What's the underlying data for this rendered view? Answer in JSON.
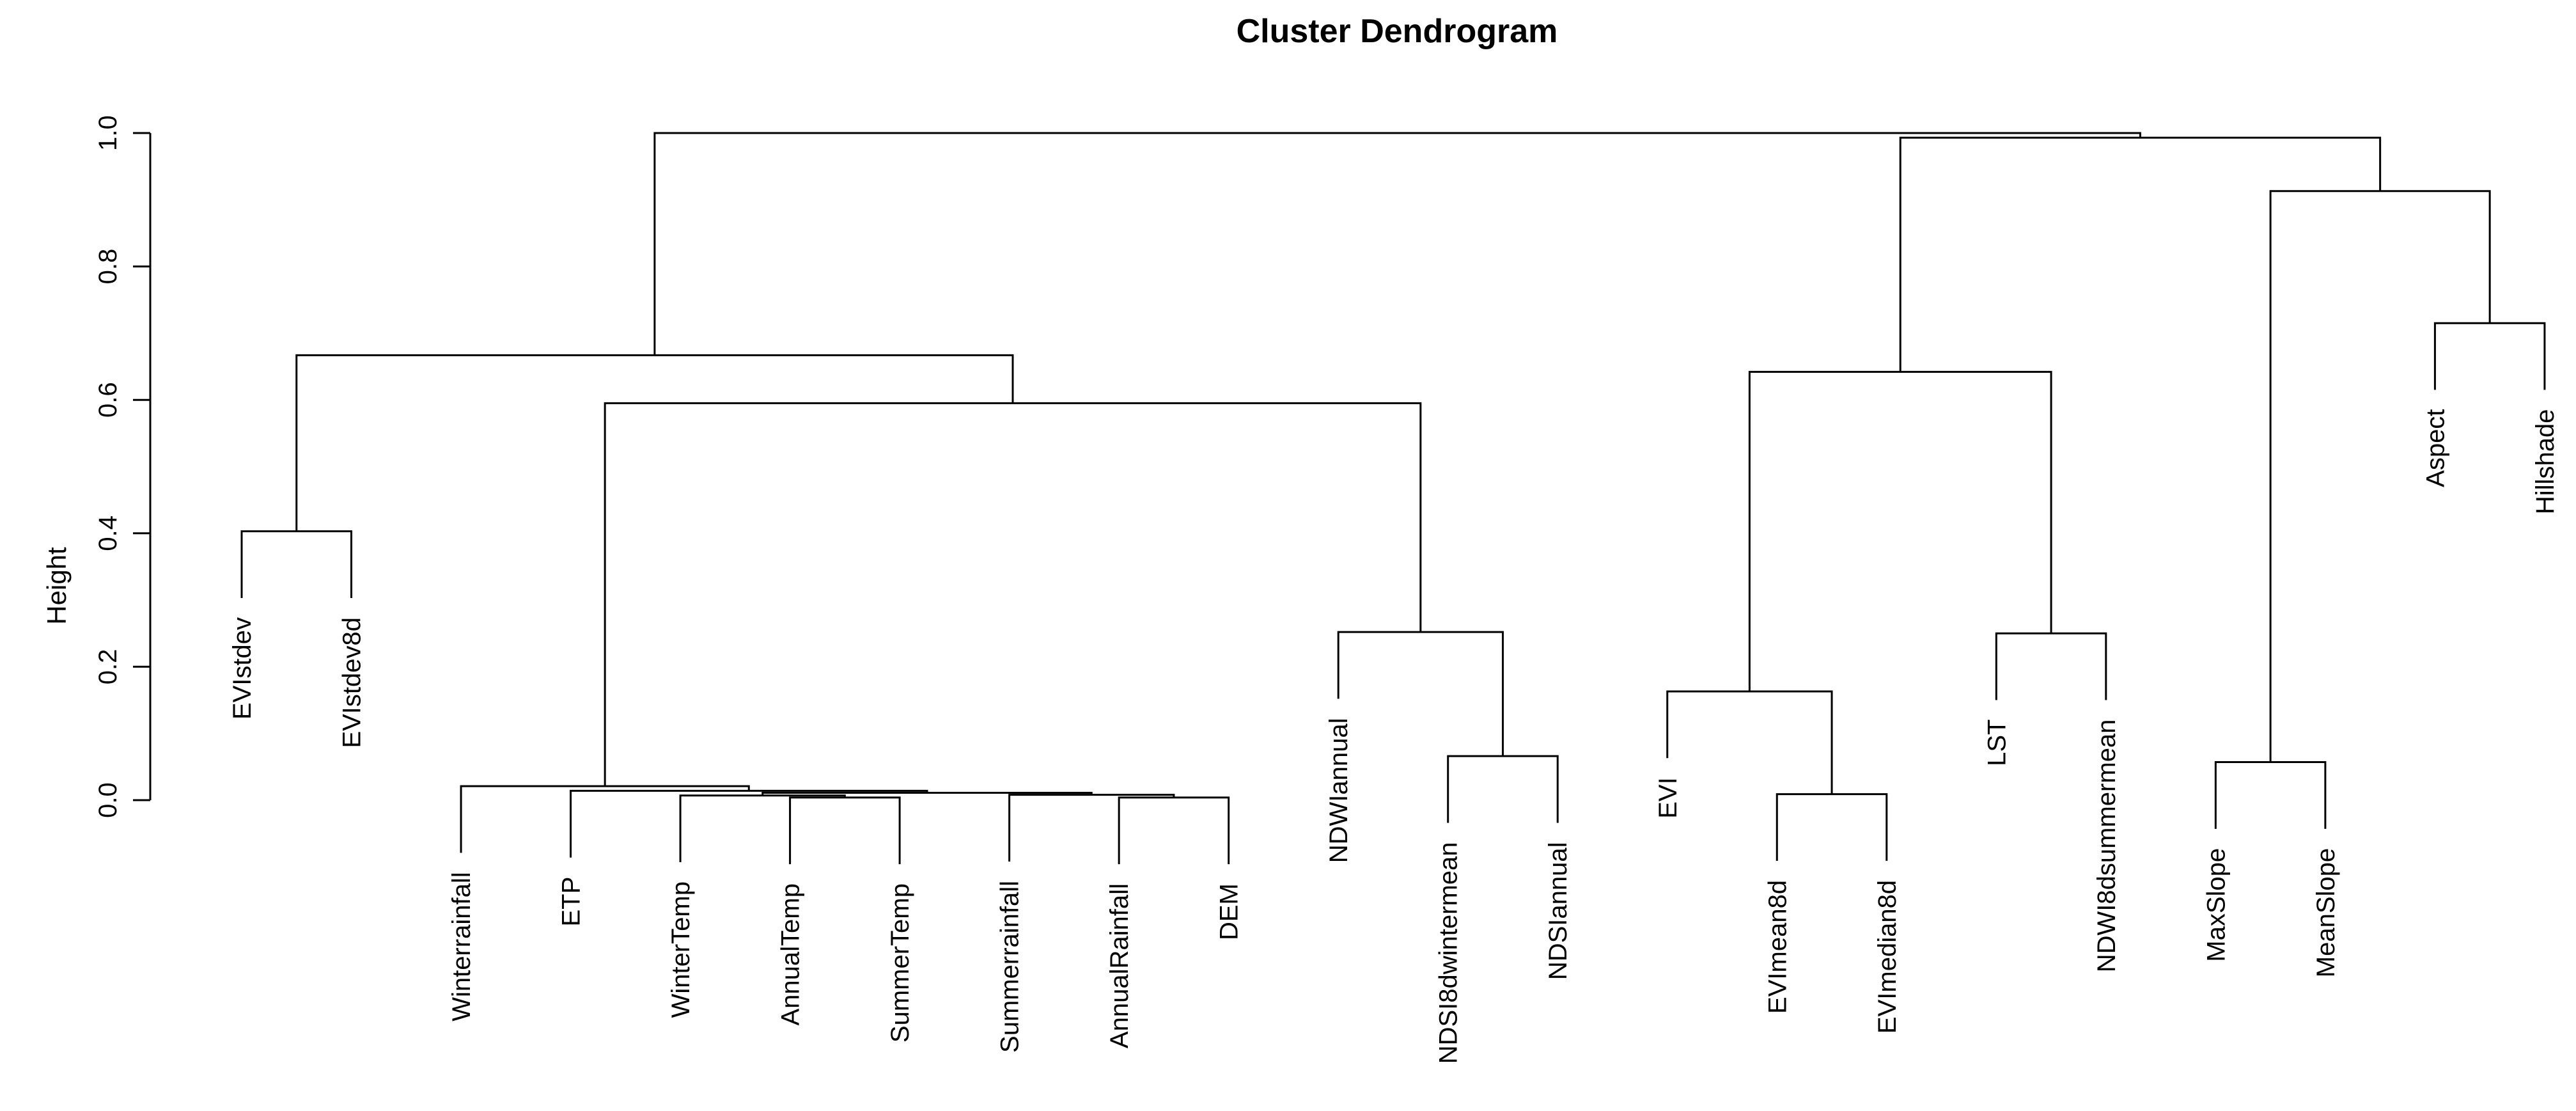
{
  "page": {
    "background": "#ffffff"
  },
  "chart_data": {
    "type": "dendrogram",
    "title": "Cluster Dendrogram",
    "ylabel": "Height",
    "ylim": [
      0,
      1
    ],
    "yticks": [
      "0.0",
      "0.2",
      "0.4",
      "0.6",
      "0.8",
      "1.0"
    ],
    "ytick_values": [
      0.0,
      0.2,
      0.4,
      0.6,
      0.8,
      1.0
    ],
    "hang": 0.1,
    "line_color": "#000000",
    "text_color": "#000000",
    "legend": "none",
    "grid": "off",
    "leaves": [
      "EVIstdev",
      "EVIstdev8d",
      "Winterrainfall",
      "ETP",
      "WinterTemp",
      "AnnualTemp",
      "SummerTemp",
      "Summerrainfall",
      "AnnualRainfall",
      "DEM",
      "NDWIannual",
      "NDSI8dwintermean",
      "NDSIannual",
      "EVI",
      "EVImean8d",
      "EVImedian8d",
      "LST",
      "NDWI8dsummermean",
      "MaxSlope",
      "MeanSlope",
      "Aspect",
      "Hillshade"
    ],
    "merges": [
      {
        "id": "M1",
        "left": "L1",
        "right": "L2",
        "height": 0.403
      },
      {
        "id": "M2",
        "left": "L6",
        "right": "L7",
        "height": 0.004
      },
      {
        "id": "M3",
        "left": "L5",
        "right": "M2",
        "height": 0.007
      },
      {
        "id": "M4",
        "left": "L9",
        "right": "L10",
        "height": 0.004
      },
      {
        "id": "M5",
        "left": "L8",
        "right": "M4",
        "height": 0.008
      },
      {
        "id": "M6",
        "left": "M3",
        "right": "M5",
        "height": 0.011
      },
      {
        "id": "M7",
        "left": "L4",
        "right": "M6",
        "height": 0.014
      },
      {
        "id": "M8",
        "left": "L3",
        "right": "M7",
        "height": 0.021
      },
      {
        "id": "M9",
        "left": "L12",
        "right": "L13",
        "height": 0.066
      },
      {
        "id": "M10",
        "left": "L11",
        "right": "M9",
        "height": 0.252
      },
      {
        "id": "M11",
        "left": "M8",
        "right": "M10",
        "height": 0.595
      },
      {
        "id": "M12",
        "left": "M1",
        "right": "M11",
        "height": 0.667
      },
      {
        "id": "M13",
        "left": "L15",
        "right": "L16",
        "height": 0.009
      },
      {
        "id": "M14",
        "left": "L14",
        "right": "M13",
        "height": 0.163
      },
      {
        "id": "M15",
        "left": "L17",
        "right": "L18",
        "height": 0.25
      },
      {
        "id": "M16",
        "left": "M14",
        "right": "M15",
        "height": 0.642
      },
      {
        "id": "M17",
        "left": "L19",
        "right": "L20",
        "height": 0.057
      },
      {
        "id": "M18",
        "left": "L21",
        "right": "L22",
        "height": 0.715
      },
      {
        "id": "M19",
        "left": "M17",
        "right": "M18",
        "height": 0.913
      },
      {
        "id": "M20",
        "left": "M16",
        "right": "M19",
        "height": 0.993
      },
      {
        "id": "M21",
        "left": "M12",
        "right": "M20",
        "height": 1.0
      }
    ]
  }
}
